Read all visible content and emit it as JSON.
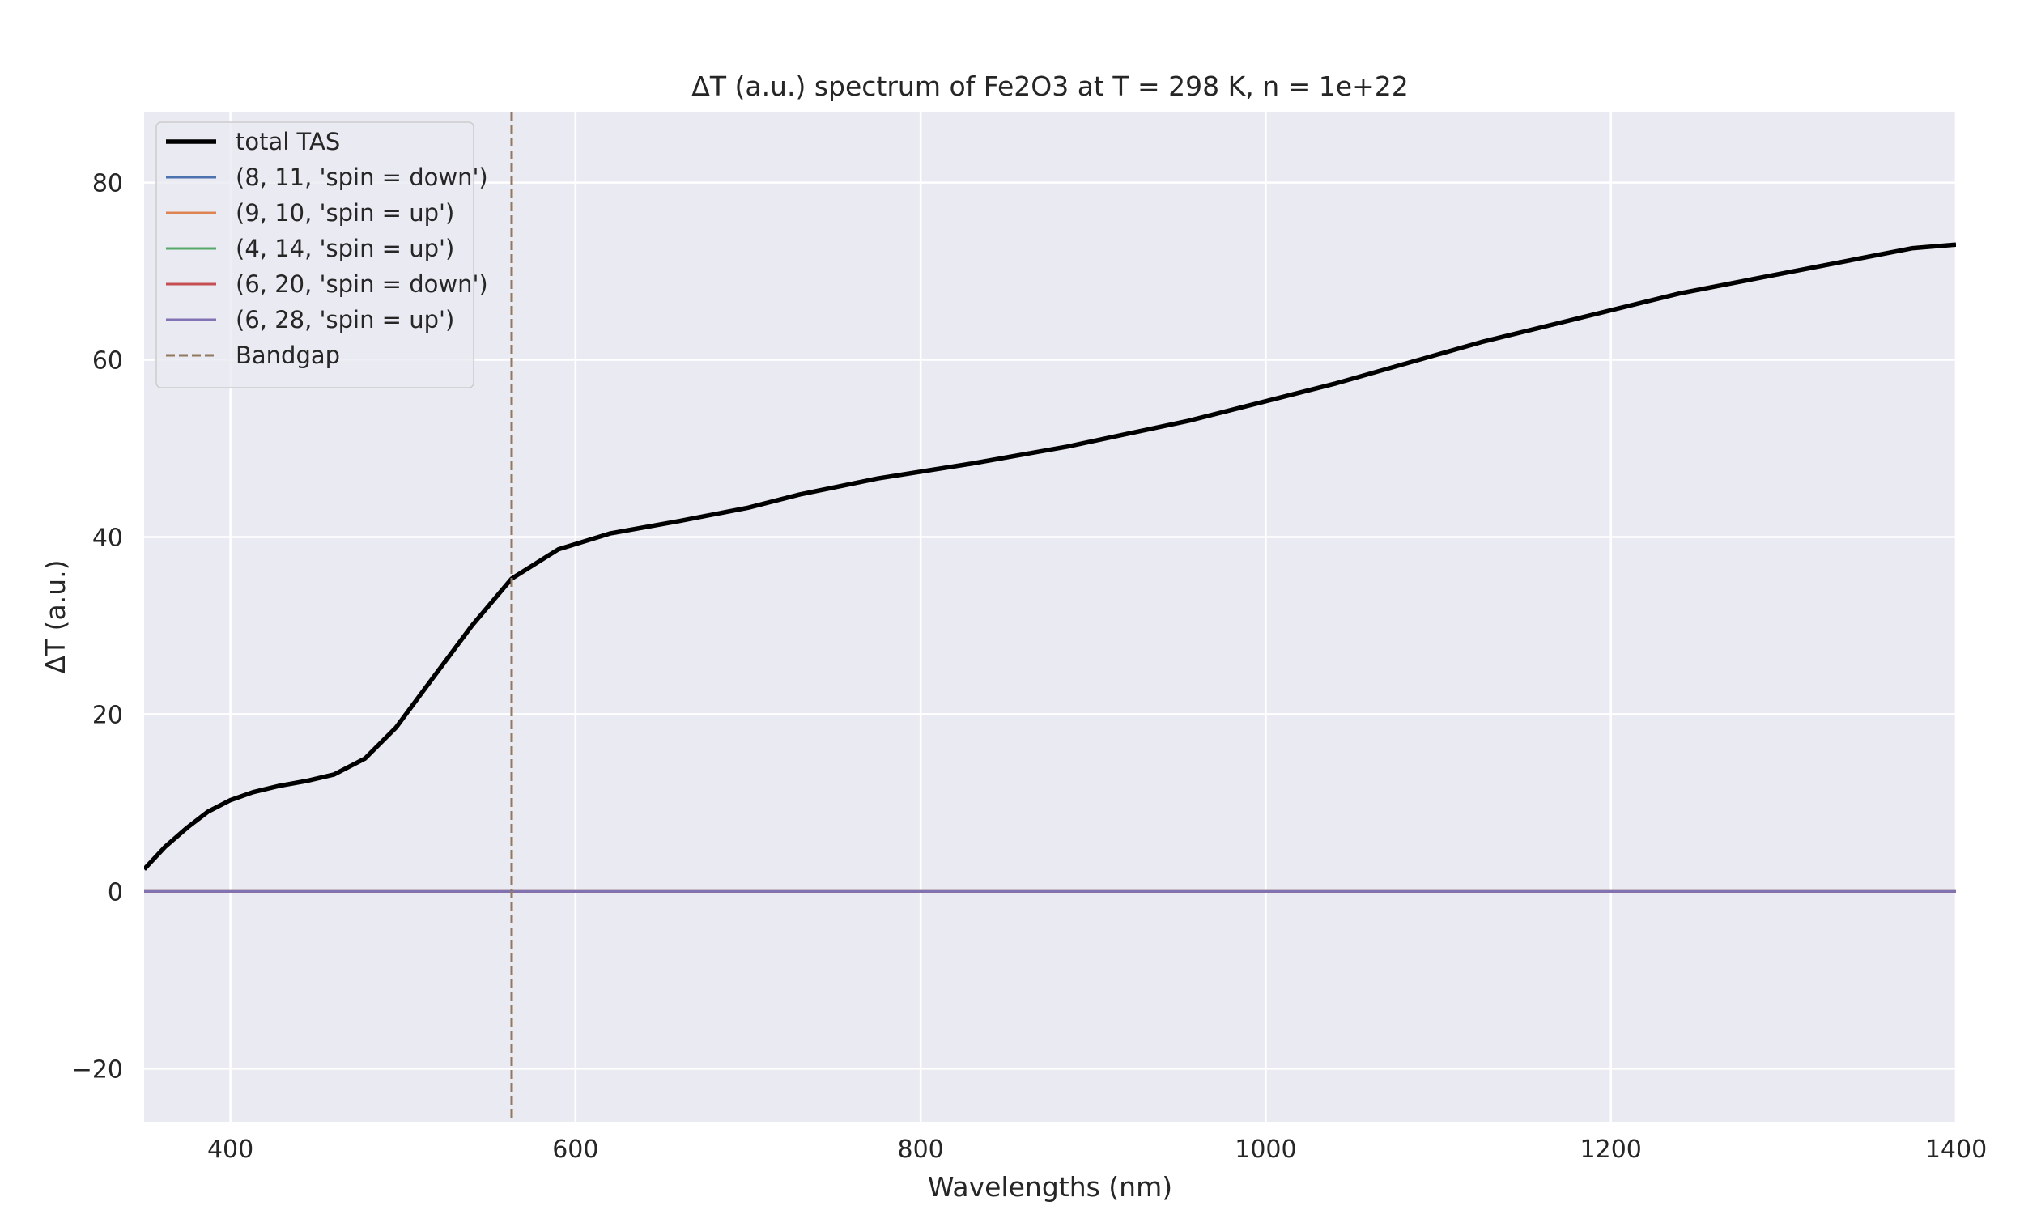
{
  "chart_data": {
    "type": "line",
    "title": "ΔT (a.u.) spectrum of Fe2O3 at T = 298 K, n = 1e+22",
    "xlabel": "Wavelengths (nm)",
    "ylabel": "ΔT (a.u.)",
    "xlim": [
      350,
      1400
    ],
    "ylim": [
      -26,
      88
    ],
    "x_ticks": [
      400,
      600,
      800,
      1000,
      1200,
      1400
    ],
    "y_ticks": [
      -20,
      0,
      20,
      40,
      60,
      80
    ],
    "grid": true,
    "legend_position": "top-left",
    "series": [
      {
        "name": "total TAS",
        "color": "#000000",
        "style": "solid-thick",
        "x": [
          350,
          362,
          375,
          387,
          400,
          413,
          428,
          445,
          460,
          478,
          496,
          517,
          540,
          563,
          590,
          620,
          660,
          700,
          730,
          775,
          830,
          885,
          955,
          1040,
          1125,
          1240,
          1375,
          1400
        ],
        "y": [
          2.5,
          5.0,
          7.2,
          9.0,
          10.3,
          11.2,
          11.9,
          12.5,
          13.2,
          15.0,
          18.5,
          24.0,
          30.0,
          35.3,
          38.6,
          40.4,
          41.8,
          43.3,
          44.8,
          46.6,
          48.3,
          50.2,
          53.1,
          57.3,
          62.0,
          67.5,
          72.6,
          73.0
        ]
      },
      {
        "name": "(8, 11, 'spin = down')",
        "color": "#4c72b0",
        "style": "solid",
        "x": [
          350,
          1400
        ],
        "y": [
          0,
          0
        ]
      },
      {
        "name": "(9, 10, 'spin = up')",
        "color": "#dd8452",
        "style": "solid",
        "x": [
          350,
          1400
        ],
        "y": [
          0,
          0
        ]
      },
      {
        "name": "(4, 14, 'spin = up')",
        "color": "#55a868",
        "style": "solid",
        "x": [
          350,
          1400
        ],
        "y": [
          0,
          0
        ]
      },
      {
        "name": "(6, 20, 'spin = down')",
        "color": "#c44e52",
        "style": "solid",
        "x": [
          350,
          1400
        ],
        "y": [
          0,
          0
        ]
      },
      {
        "name": "(6, 28, 'spin = up')",
        "color": "#8172b3",
        "style": "solid",
        "x": [
          350,
          1400
        ],
        "y": [
          0,
          0
        ]
      }
    ],
    "vlines": [
      {
        "name": "Bandgap",
        "x": 563,
        "color": "#937860",
        "style": "dashed"
      }
    ]
  }
}
